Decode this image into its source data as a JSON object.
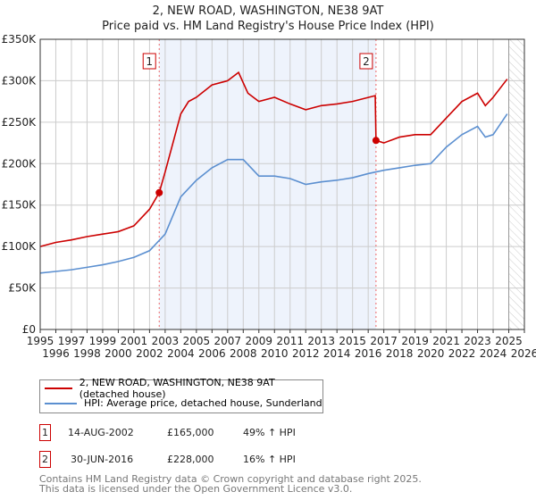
{
  "chart_data": {
    "type": "line",
    "title": "2, NEW ROAD, WASHINGTON, NE38 9AT",
    "subtitle": "Price paid vs. HM Land Registry's House Price Index (HPI)",
    "xlim": [
      1995,
      2026
    ],
    "ylim": [
      0,
      350000
    ],
    "xticks": [
      "1995",
      "1996",
      "1997",
      "1998",
      "1999",
      "2000",
      "2001",
      "2002",
      "2003",
      "2004",
      "2005",
      "2006",
      "2007",
      "2008",
      "2009",
      "2010",
      "2011",
      "2012",
      "2013",
      "2014",
      "2015",
      "2016",
      "2017",
      "2018",
      "2019",
      "2020",
      "2021",
      "2022",
      "2023",
      "2024",
      "2025",
      "2026"
    ],
    "yticks": [
      {
        "v": 0,
        "label": "£0"
      },
      {
        "v": 50000,
        "label": "£50K"
      },
      {
        "v": 100000,
        "label": "£100K"
      },
      {
        "v": 150000,
        "label": "£150K"
      },
      {
        "v": 200000,
        "label": "£200K"
      },
      {
        "v": 250000,
        "label": "£250K"
      },
      {
        "v": 300000,
        "label": "£300K"
      },
      {
        "v": 350000,
        "label": "£350K"
      }
    ],
    "grid": true,
    "shaded_range": [
      2002.62,
      2016.5
    ],
    "hatched_from": 2025.0,
    "series": [
      {
        "name": "2, NEW ROAD, WASHINGTON, NE38 9AT (detached house)",
        "color": "#cc0000",
        "x": [
          1995,
          1996,
          1997,
          1998,
          1999,
          2000,
          2001,
          2002,
          2002.62,
          2003,
          2003.5,
          2004,
          2004.5,
          2005,
          2006,
          2007,
          2007.7,
          2008.3,
          2009,
          2010,
          2011,
          2012,
          2013,
          2014,
          2015,
          2016.45,
          2016.5,
          2017,
          2018,
          2019,
          2020,
          2021,
          2022,
          2023,
          2023.5,
          2024,
          2024.9
        ],
        "y": [
          100000,
          105000,
          108000,
          112000,
          115000,
          118000,
          125000,
          145000,
          165000,
          190000,
          225000,
          260000,
          275000,
          280000,
          295000,
          300000,
          310000,
          285000,
          275000,
          280000,
          272000,
          265000,
          270000,
          272000,
          275000,
          282000,
          228000,
          225000,
          232000,
          235000,
          235000,
          255000,
          275000,
          285000,
          270000,
          280000,
          302000
        ]
      },
      {
        "name": "HPI: Average price, detached house, Sunderland",
        "color": "#5b8fd0",
        "x": [
          1995,
          1996,
          1997,
          1998,
          1999,
          2000,
          2001,
          2002,
          2003,
          2004,
          2005,
          2006,
          2007,
          2008,
          2009,
          2010,
          2011,
          2012,
          2013,
          2014,
          2015,
          2016,
          2017,
          2018,
          2019,
          2020,
          2021,
          2022,
          2023,
          2023.5,
          2024,
          2024.9
        ],
        "y": [
          68000,
          70000,
          72000,
          75000,
          78000,
          82000,
          87000,
          95000,
          115000,
          160000,
          180000,
          195000,
          205000,
          205000,
          185000,
          185000,
          182000,
          175000,
          178000,
          180000,
          183000,
          188000,
          192000,
          195000,
          198000,
          200000,
          220000,
          235000,
          245000,
          232000,
          235000,
          260000
        ]
      }
    ],
    "sales": [
      {
        "label": "1",
        "x": 2002.62,
        "y": 165000,
        "date": "14-AUG-2002",
        "price": "£165,000",
        "hpi": "49% ↑ HPI"
      },
      {
        "label": "2",
        "x": 2016.5,
        "y": 228000,
        "date": "30-JUN-2016",
        "price": "£228,000",
        "hpi": "16% ↑ HPI"
      }
    ]
  },
  "footer": [
    "Contains HM Land Registry data © Crown copyright and database right 2025.",
    "This data is licensed under the Open Government Licence v3.0."
  ]
}
